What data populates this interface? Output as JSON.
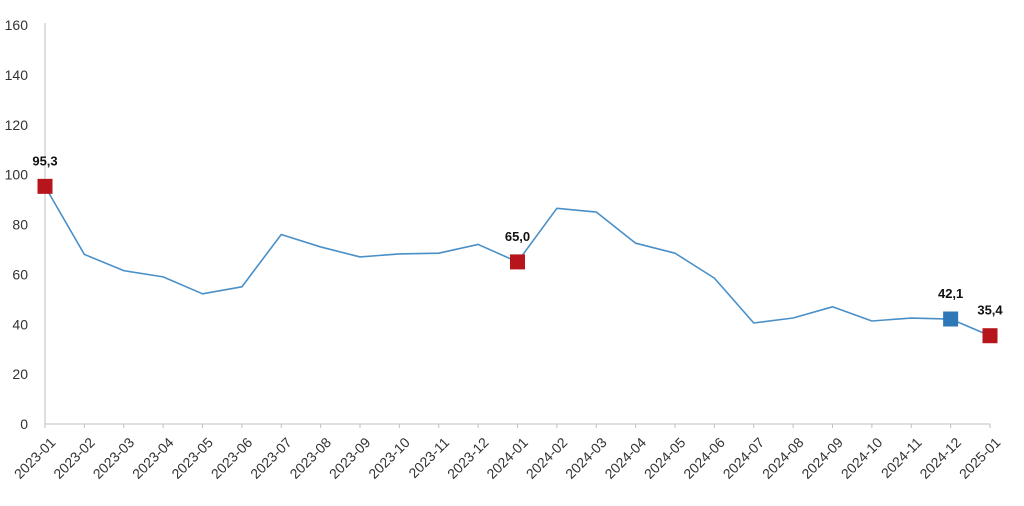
{
  "chart_data": {
    "type": "line",
    "x": [
      "2023-01",
      "2023-02",
      "2023-03",
      "2023-04",
      "2023-05",
      "2023-06",
      "2023-07",
      "2023-08",
      "2023-09",
      "2023-10",
      "2023-11",
      "2023-12",
      "2024-01",
      "2024-02",
      "2024-03",
      "2024-04",
      "2024-05",
      "2024-06",
      "2024-07",
      "2024-08",
      "2024-09",
      "2024-10",
      "2024-11",
      "2024-12",
      "2025-01"
    ],
    "series": [
      {
        "color": "#4a90c8",
        "values": [
          95.3,
          68.0,
          61.5,
          59.0,
          52.2,
          55.0,
          76.0,
          71.0,
          67.0,
          68.2,
          68.5,
          72.0,
          65.0,
          86.5,
          85.0,
          72.5,
          68.5,
          58.5,
          40.5,
          42.5,
          47.0,
          41.3,
          42.5,
          42.1,
          35.4
        ]
      }
    ],
    "ylim": [
      0,
      160
    ],
    "yticks": [
      0,
      20,
      40,
      60,
      80,
      100,
      120,
      140,
      160
    ],
    "grid": false,
    "legend": "none",
    "highlights": [
      {
        "index": 0,
        "label": "95,3",
        "color": "#b5151b"
      },
      {
        "index": 12,
        "label": "65,0",
        "color": "#b5151b"
      },
      {
        "index": 23,
        "label": "42,1",
        "color": "#2e78b8"
      },
      {
        "index": 24,
        "label": "35,4",
        "color": "#b5151b"
      }
    ]
  }
}
